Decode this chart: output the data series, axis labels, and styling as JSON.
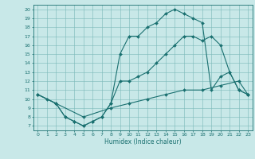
{
  "xlabel": "Humidex (Indice chaleur)",
  "bg_color": "#c8e8e8",
  "line_color": "#1a7070",
  "grid_color": "#7ab8b8",
  "xlim": [
    -0.5,
    23.5
  ],
  "ylim": [
    6.5,
    20.5
  ],
  "xticks": [
    0,
    1,
    2,
    3,
    4,
    5,
    6,
    7,
    8,
    9,
    10,
    11,
    12,
    13,
    14,
    15,
    16,
    17,
    18,
    19,
    20,
    21,
    22,
    23
  ],
  "yticks": [
    7,
    8,
    9,
    10,
    11,
    12,
    13,
    14,
    15,
    16,
    17,
    18,
    19,
    20
  ],
  "line1_x": [
    0,
    1,
    2,
    3,
    4,
    5,
    6,
    7,
    8,
    9,
    10,
    11,
    12,
    13,
    14,
    15,
    16,
    17,
    18,
    19,
    20,
    21,
    22,
    23
  ],
  "line1_y": [
    10.5,
    10,
    9.5,
    8,
    7.5,
    7,
    7.5,
    8,
    9.5,
    15,
    17,
    17,
    18,
    18.5,
    19.5,
    20,
    19.5,
    19,
    18.5,
    11,
    12.5,
    13,
    11,
    10.5
  ],
  "line2_x": [
    0,
    2,
    3,
    4,
    5,
    6,
    7,
    8,
    9,
    10,
    11,
    12,
    13,
    14,
    15,
    16,
    17,
    18,
    19,
    20,
    21,
    22,
    23
  ],
  "line2_y": [
    10.5,
    9.5,
    8,
    7.5,
    7,
    7.5,
    8,
    9.5,
    12,
    12,
    12.5,
    13,
    14,
    15,
    16,
    17,
    17,
    16.5,
    17,
    16,
    13,
    11,
    10.5
  ],
  "line3_x": [
    0,
    2,
    5,
    8,
    10,
    12,
    14,
    16,
    18,
    20,
    22,
    23
  ],
  "line3_y": [
    10.5,
    9.5,
    8,
    9,
    9.5,
    10,
    10.5,
    11,
    11,
    11.5,
    12,
    10.5
  ]
}
